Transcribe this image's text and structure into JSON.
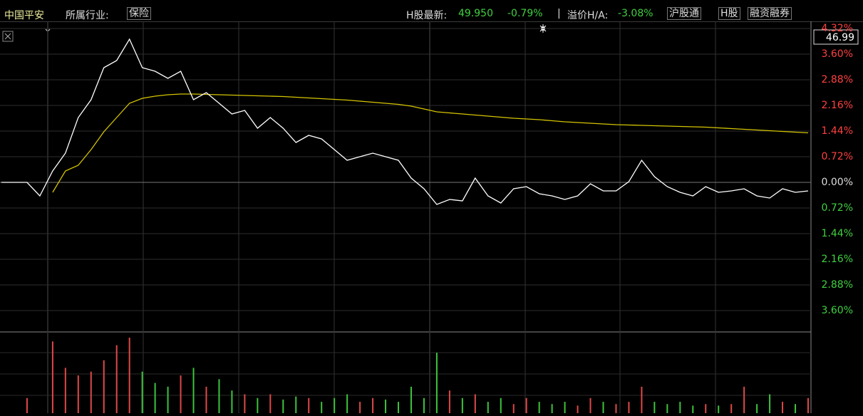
{
  "header": {
    "name": "中国平安",
    "industry_label": "所属行业:",
    "industry": "保险",
    "h_label": "H股最新:",
    "h_price": "49.950",
    "h_change": "-0.79%",
    "separator": "|",
    "premium_label": "溢价H/A:",
    "premium": "-3.08%",
    "buttons": [
      "沪股通",
      "H股",
      "融资融券"
    ]
  },
  "chart_data": {
    "type": "line",
    "price_label": "46.99",
    "categories": [
      null,
      null,
      null,
      null,
      null,
      null,
      null,
      null,
      null,
      null,
      null,
      null,
      null,
      null,
      null,
      null,
      null,
      null,
      null,
      null,
      null,
      null,
      null,
      null,
      null,
      null,
      null,
      null,
      null,
      null,
      null,
      null,
      null,
      null,
      null,
      null,
      null,
      null,
      null,
      null,
      null,
      null,
      null,
      null,
      null,
      null,
      null,
      null,
      null,
      null,
      null,
      null,
      null,
      null,
      null,
      null,
      null,
      null,
      null,
      null,
      null,
      null,
      null,
      null
    ],
    "series": [
      {
        "color": "#ffffff",
        "values": [
          0,
          0,
          0,
          -0.38,
          0.32,
          0.82,
          1.82,
          2.32,
          3.22,
          3.42,
          4.02,
          3.22,
          3.12,
          2.92,
          3.12,
          2.32,
          2.52,
          2.22,
          1.92,
          2.02,
          1.52,
          1.82,
          1.52,
          1.12,
          1.32,
          1.22,
          0.92,
          0.62,
          0.72,
          0.82,
          0.72,
          0.62,
          0.12,
          -0.18,
          -0.62,
          -0.48,
          -0.52,
          0.12,
          -0.38,
          -0.58,
          -0.18,
          -0.12,
          -0.32,
          -0.38,
          -0.48,
          -0.38,
          -0.04,
          -0.24,
          -0.24,
          0.02,
          0.62,
          0.16,
          -0.12,
          -0.28,
          -0.38,
          -0.12,
          -0.28,
          -0.24,
          -0.18,
          -0.38,
          -0.44,
          -0.18,
          -0.28,
          -0.24
        ]
      },
      {
        "color": "#d4c400",
        "values": [
          null,
          null,
          null,
          null,
          -0.28,
          0.32,
          0.48,
          0.92,
          1.42,
          1.82,
          2.22,
          2.36,
          2.42,
          2.46,
          2.48,
          2.48,
          2.47,
          2.46,
          2.45,
          2.44,
          2.43,
          2.42,
          2.41,
          2.39,
          2.37,
          2.35,
          2.33,
          2.31,
          2.28,
          2.25,
          2.22,
          2.19,
          2.14,
          2.06,
          1.98,
          1.95,
          1.92,
          1.89,
          1.86,
          1.83,
          1.8,
          1.78,
          1.76,
          1.73,
          1.7,
          1.68,
          1.66,
          1.64,
          1.62,
          1.61,
          1.6,
          1.59,
          1.58,
          1.57,
          1.56,
          1.55,
          1.53,
          1.51,
          1.49,
          1.47,
          1.45,
          1.43,
          1.41,
          1.39
        ]
      }
    ],
    "volume": {
      "up_color": "#e04848",
      "down_color": "#3cc43c",
      "values": [
        0,
        0,
        20,
        0,
        95,
        60,
        50,
        55,
        70,
        90,
        100,
        55,
        40,
        35,
        50,
        60,
        35,
        45,
        30,
        25,
        20,
        25,
        18,
        22,
        20,
        15,
        20,
        25,
        15,
        20,
        18,
        15,
        35,
        20,
        80,
        30,
        20,
        25,
        15,
        20,
        12,
        20,
        15,
        12,
        15,
        10,
        20,
        15,
        12,
        15,
        35,
        15,
        12,
        15,
        10,
        12,
        10,
        12,
        35,
        12,
        25,
        15,
        12,
        20
      ]
    },
    "ylim": [
      -4.18,
      4.52
    ],
    "yticks": [
      {
        "value": 4.32,
        "label": "4.32%"
      },
      {
        "value": 3.6,
        "label": "3.60%"
      },
      {
        "value": 2.88,
        "label": "2.88%"
      },
      {
        "value": 2.16,
        "label": "2.16%"
      },
      {
        "value": 1.44,
        "label": "1.44%"
      },
      {
        "value": 0.72,
        "label": "0.72%"
      },
      {
        "value": 0,
        "label": "0.00%"
      },
      {
        "value": -0.72,
        "label": "0.72%"
      },
      {
        "value": -1.44,
        "label": "1.44%"
      },
      {
        "value": -2.16,
        "label": "2.16%"
      },
      {
        "value": -2.88,
        "label": "2.88%"
      },
      {
        "value": -3.6,
        "label": "3.60%"
      }
    ],
    "grid": true,
    "up_tick_color": "#ff4040",
    "down_tick_color": "#40d040",
    "zero_tick_color": "#dddddd"
  }
}
